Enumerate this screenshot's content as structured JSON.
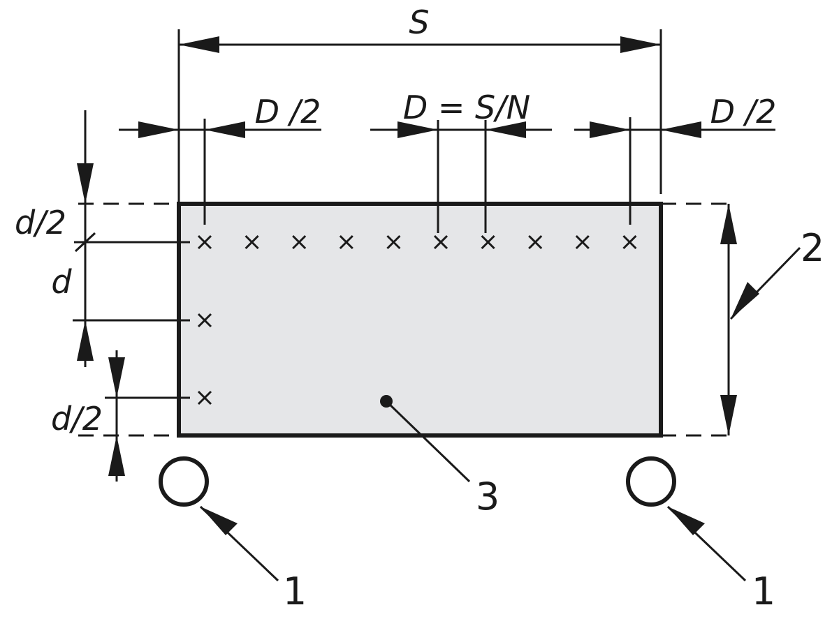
{
  "labels": {
    "S": "S",
    "D_half": "D /2",
    "D_eq": "D = S/N",
    "d_half": "d/2",
    "d": "d"
  },
  "callouts": {
    "rollers": "1",
    "height": "2",
    "sheet": "3"
  },
  "colors": {
    "ink": "#1a1a1a",
    "sheet_fill": "#e5e6e8"
  },
  "grid": {
    "row_count": 10,
    "column_count": 3
  }
}
